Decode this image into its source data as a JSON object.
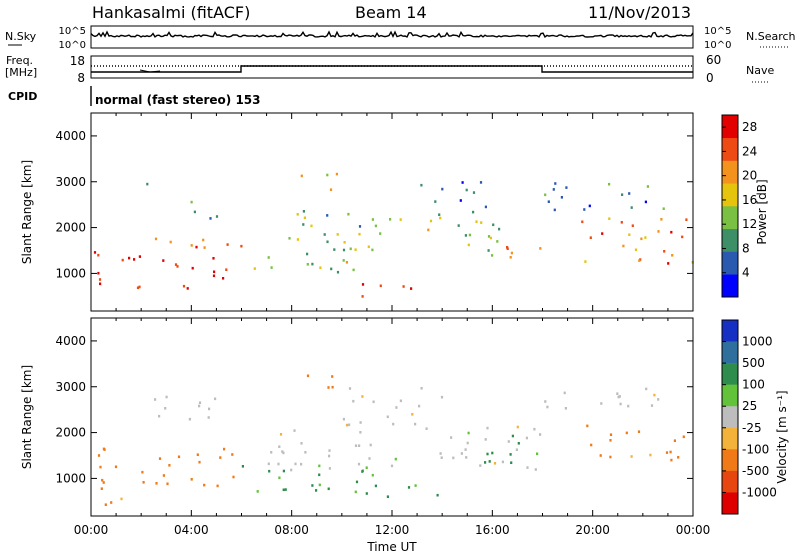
{
  "header": {
    "station": "Hankasalmi (fitACF)",
    "beam": "Beam 14",
    "date": "11/Nov/2013"
  },
  "noise_panel": {
    "left_label": "N.Sky",
    "right_label": "N.Search",
    "left_ticks": [
      "10^5",
      "10^0"
    ],
    "right_ticks": [
      "10^5",
      "10^0"
    ]
  },
  "freq_panel": {
    "left_label_1": "Freq.",
    "left_label_2": "[MHz]",
    "left_ticks": [
      "18",
      "8"
    ],
    "right_label": "Nave",
    "right_ticks": [
      "60",
      "0"
    ]
  },
  "cpid": {
    "label": "CPID",
    "text": "normal (fast stereo) 153"
  },
  "x_axis": {
    "ticks": [
      "00:00",
      "04:00",
      "08:00",
      "12:00",
      "16:00",
      "20:00",
      "00:00"
    ],
    "label": "Time UT"
  },
  "chart_data": [
    {
      "type": "heatmap",
      "title": "",
      "xlabel": "Time UT",
      "ylabel": "Slant Range [km]",
      "y_ticks": [
        "1000",
        "2000",
        "3000",
        "4000"
      ],
      "ylim": [
        180,
        4500
      ],
      "xlim": [
        0,
        24
      ],
      "colorbar": {
        "label": "Power [dB]",
        "ticks": [
          "4",
          "8",
          "12",
          "16",
          "20",
          "24",
          "28"
        ],
        "range": [
          0,
          30
        ],
        "colors": [
          "#0000ff",
          "#2a5ab0",
          "#3d8f67",
          "#7ac042",
          "#e6c30c",
          "#f3921c",
          "#ee4b14",
          "#e20000"
        ]
      },
      "regions": [
        {
          "t0": 0.0,
          "t1": 6.0,
          "r0": 700,
          "r1": 1500,
          "value": 29
        },
        {
          "t0": 0.0,
          "t1": 6.0,
          "r0": 1500,
          "r1": 1800,
          "value": 24
        },
        {
          "t0": 2.0,
          "t1": 3.0,
          "r0": 2900,
          "r1": 3100,
          "value": 6
        },
        {
          "t0": 3.5,
          "t1": 5.0,
          "r0": 2200,
          "r1": 2800,
          "value": 10
        },
        {
          "t0": 6.0,
          "t1": 11.0,
          "r0": 1000,
          "r1": 1800,
          "value": 14
        },
        {
          "t0": 8.0,
          "t1": 11.5,
          "r0": 1600,
          "r1": 2400,
          "value": 12
        },
        {
          "t0": 8.0,
          "t1": 10.0,
          "r0": 2800,
          "r1": 3200,
          "value": 16
        },
        {
          "t0": 10.5,
          "t1": 14.0,
          "r0": 500,
          "r1": 800,
          "value": 26
        },
        {
          "t0": 11.0,
          "t1": 16.5,
          "r0": 1400,
          "r1": 2300,
          "value": 13
        },
        {
          "t0": 13.0,
          "t1": 16.0,
          "r0": 2300,
          "r1": 3100,
          "value": 6
        },
        {
          "t0": 16.5,
          "t1": 18.0,
          "r0": 1200,
          "r1": 2000,
          "value": 22
        },
        {
          "t0": 18.0,
          "t1": 24.0,
          "r0": 2400,
          "r1": 3000,
          "value": 8
        },
        {
          "t0": 19.5,
          "t1": 24.0,
          "r0": 1200,
          "r1": 2300,
          "value": 22
        }
      ]
    },
    {
      "type": "heatmap",
      "title": "",
      "xlabel": "Time UT",
      "ylabel": "Slant Range [km]",
      "y_ticks": [
        "1000",
        "2000",
        "3000",
        "4000"
      ],
      "ylim": [
        180,
        4500
      ],
      "xlim": [
        0,
        24
      ],
      "colorbar": {
        "label": "Velocity [m s⁻¹]",
        "ticks": [
          "1000",
          "500",
          "100",
          "25",
          "-25",
          "-100",
          "-500",
          "-1000"
        ],
        "colors": [
          "#1730c4",
          "#2e6f9e",
          "#2e8c4c",
          "#62c23a",
          "#bdbdbd",
          "#f3b23a",
          "#ef7a17",
          "#e84611",
          "#de0000"
        ]
      },
      "regions": [
        {
          "t0": 0.0,
          "t1": 6.0,
          "r0": 800,
          "r1": 1700,
          "value": -150
        },
        {
          "t0": 0.5,
          "t1": 3.0,
          "r0": 400,
          "r1": 700,
          "value": -100
        },
        {
          "t0": 2.0,
          "t1": 5.0,
          "r0": 2200,
          "r1": 2900,
          "value": 0
        },
        {
          "t0": 6.0,
          "t1": 12.0,
          "r0": 600,
          "r1": 1400,
          "value": 80
        },
        {
          "t0": 7.0,
          "t1": 18.0,
          "r0": 1200,
          "r1": 2200,
          "value": 0
        },
        {
          "t0": 8.0,
          "t1": 10.0,
          "r0": 2900,
          "r1": 3300,
          "value": -150
        },
        {
          "t0": 10.0,
          "t1": 14.0,
          "r0": 2200,
          "r1": 3000,
          "value": 0
        },
        {
          "t0": 12.0,
          "t1": 14.0,
          "r0": 600,
          "r1": 900,
          "value": 80
        },
        {
          "t0": 15.5,
          "t1": 17.5,
          "r0": 1200,
          "r1": 2100,
          "value": 150
        },
        {
          "t0": 18.0,
          "t1": 24.0,
          "r0": 2500,
          "r1": 3000,
          "value": 0
        },
        {
          "t0": 19.5,
          "t1": 24.0,
          "r0": 1400,
          "r1": 2200,
          "value": -100
        }
      ]
    }
  ]
}
